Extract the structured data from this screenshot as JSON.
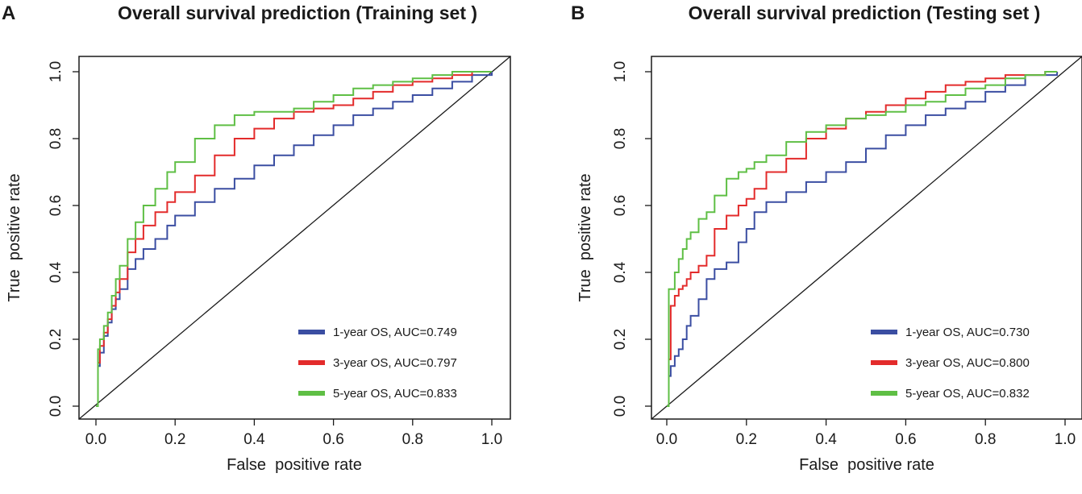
{
  "chart_data": [
    {
      "type": "line",
      "panel": "A",
      "title": "Overall survival prediction (Training set )",
      "xlabel": "False  positive rate",
      "ylabel": "True  positive rate",
      "xlim": [
        0,
        1
      ],
      "ylim": [
        0,
        1
      ],
      "xticks": [
        "0.0",
        "0.2",
        "0.4",
        "0.6",
        "0.8",
        "1.0"
      ],
      "yticks": [
        "0.0",
        "0.2",
        "0.4",
        "0.6",
        "0.8",
        "1.0"
      ],
      "legend_position": "bottom-right",
      "reference_line": {
        "x": [
          0,
          1
        ],
        "y": [
          0,
          1
        ]
      },
      "series": [
        {
          "name": "1-year OS, AUC=0.749",
          "color": "#3b4ea2",
          "x": [
            0,
            0.005,
            0.01,
            0.02,
            0.03,
            0.04,
            0.05,
            0.06,
            0.08,
            0.1,
            0.12,
            0.15,
            0.18,
            0.2,
            0.25,
            0.3,
            0.35,
            0.4,
            0.45,
            0.5,
            0.55,
            0.6,
            0.65,
            0.7,
            0.75,
            0.8,
            0.85,
            0.9,
            0.95,
            1.0
          ],
          "y": [
            0,
            0.12,
            0.16,
            0.21,
            0.25,
            0.29,
            0.32,
            0.35,
            0.41,
            0.44,
            0.47,
            0.5,
            0.54,
            0.57,
            0.61,
            0.65,
            0.68,
            0.72,
            0.75,
            0.78,
            0.81,
            0.84,
            0.87,
            0.89,
            0.91,
            0.93,
            0.95,
            0.97,
            0.99,
            1.0
          ]
        },
        {
          "name": "3-year OS, AUC=0.797",
          "color": "#e32b2b",
          "x": [
            0,
            0.005,
            0.01,
            0.02,
            0.03,
            0.04,
            0.05,
            0.06,
            0.08,
            0.1,
            0.12,
            0.15,
            0.18,
            0.2,
            0.25,
            0.3,
            0.35,
            0.4,
            0.45,
            0.5,
            0.55,
            0.6,
            0.65,
            0.7,
            0.75,
            0.8,
            0.85,
            0.9,
            0.95,
            1.0
          ],
          "y": [
            0,
            0.13,
            0.18,
            0.22,
            0.26,
            0.3,
            0.34,
            0.38,
            0.46,
            0.5,
            0.54,
            0.58,
            0.61,
            0.64,
            0.69,
            0.75,
            0.8,
            0.83,
            0.86,
            0.88,
            0.89,
            0.9,
            0.92,
            0.94,
            0.96,
            0.97,
            0.98,
            0.99,
            1.0,
            1.0
          ]
        },
        {
          "name": "5-year OS, AUC=0.833",
          "color": "#5fbf45",
          "x": [
            0,
            0.005,
            0.01,
            0.02,
            0.03,
            0.04,
            0.05,
            0.06,
            0.08,
            0.1,
            0.12,
            0.15,
            0.18,
            0.2,
            0.25,
            0.3,
            0.35,
            0.4,
            0.45,
            0.5,
            0.55,
            0.6,
            0.65,
            0.7,
            0.75,
            0.8,
            0.85,
            0.9,
            0.95,
            1.0
          ],
          "y": [
            0,
            0.17,
            0.2,
            0.24,
            0.28,
            0.33,
            0.38,
            0.42,
            0.5,
            0.55,
            0.6,
            0.65,
            0.7,
            0.73,
            0.8,
            0.84,
            0.87,
            0.88,
            0.88,
            0.89,
            0.91,
            0.93,
            0.95,
            0.96,
            0.97,
            0.98,
            0.99,
            1.0,
            1.0,
            1.0
          ]
        }
      ]
    },
    {
      "type": "line",
      "panel": "B",
      "title": "Overall survival prediction (Testing set )",
      "xlabel": "False  positive rate",
      "ylabel": "True  positive rate",
      "xlim": [
        0,
        1
      ],
      "ylim": [
        0,
        1
      ],
      "xticks": [
        "0.0",
        "0.2",
        "0.4",
        "0.6",
        "0.8",
        "1.0"
      ],
      "yticks": [
        "0.0",
        "0.2",
        "0.4",
        "0.6",
        "0.8",
        "1.0"
      ],
      "legend_position": "bottom-right",
      "reference_line": {
        "x": [
          0,
          1
        ],
        "y": [
          0,
          1
        ]
      },
      "series": [
        {
          "name": "1-year OS, AUC=0.730",
          "color": "#3b4ea2",
          "x": [
            0,
            0.005,
            0.01,
            0.02,
            0.03,
            0.04,
            0.05,
            0.06,
            0.08,
            0.1,
            0.12,
            0.15,
            0.18,
            0.2,
            0.22,
            0.25,
            0.3,
            0.35,
            0.4,
            0.45,
            0.5,
            0.55,
            0.6,
            0.65,
            0.7,
            0.75,
            0.8,
            0.85,
            0.9,
            0.95,
            0.98
          ],
          "y": [
            0,
            0.09,
            0.12,
            0.15,
            0.17,
            0.2,
            0.24,
            0.27,
            0.32,
            0.38,
            0.41,
            0.43,
            0.49,
            0.53,
            0.58,
            0.61,
            0.64,
            0.67,
            0.7,
            0.73,
            0.77,
            0.81,
            0.84,
            0.87,
            0.89,
            0.91,
            0.94,
            0.96,
            0.99,
            0.99,
            1.0
          ]
        },
        {
          "name": "3-year OS, AUC=0.800",
          "color": "#e32b2b",
          "x": [
            0,
            0.005,
            0.01,
            0.02,
            0.03,
            0.04,
            0.05,
            0.06,
            0.08,
            0.1,
            0.12,
            0.15,
            0.18,
            0.2,
            0.22,
            0.25,
            0.3,
            0.35,
            0.4,
            0.45,
            0.5,
            0.55,
            0.6,
            0.65,
            0.7,
            0.75,
            0.8,
            0.85,
            0.9,
            0.95,
            0.98
          ],
          "y": [
            0,
            0.14,
            0.3,
            0.33,
            0.35,
            0.36,
            0.38,
            0.4,
            0.42,
            0.45,
            0.53,
            0.57,
            0.6,
            0.62,
            0.65,
            0.7,
            0.74,
            0.8,
            0.83,
            0.86,
            0.88,
            0.9,
            0.92,
            0.94,
            0.96,
            0.97,
            0.98,
            0.99,
            0.99,
            1.0,
            1.0
          ]
        },
        {
          "name": "5-year OS, AUC=0.832",
          "color": "#5fbf45",
          "x": [
            0,
            0.005,
            0.01,
            0.02,
            0.03,
            0.04,
            0.05,
            0.06,
            0.08,
            0.1,
            0.12,
            0.15,
            0.18,
            0.2,
            0.22,
            0.25,
            0.3,
            0.35,
            0.4,
            0.45,
            0.5,
            0.55,
            0.6,
            0.65,
            0.7,
            0.75,
            0.8,
            0.85,
            0.9,
            0.95,
            0.98
          ],
          "y": [
            0,
            0.35,
            0.35,
            0.4,
            0.44,
            0.47,
            0.5,
            0.52,
            0.56,
            0.58,
            0.63,
            0.68,
            0.7,
            0.71,
            0.73,
            0.75,
            0.79,
            0.82,
            0.84,
            0.86,
            0.87,
            0.88,
            0.9,
            0.91,
            0.93,
            0.95,
            0.96,
            0.98,
            0.99,
            1.0,
            1.0
          ]
        }
      ]
    }
  ]
}
